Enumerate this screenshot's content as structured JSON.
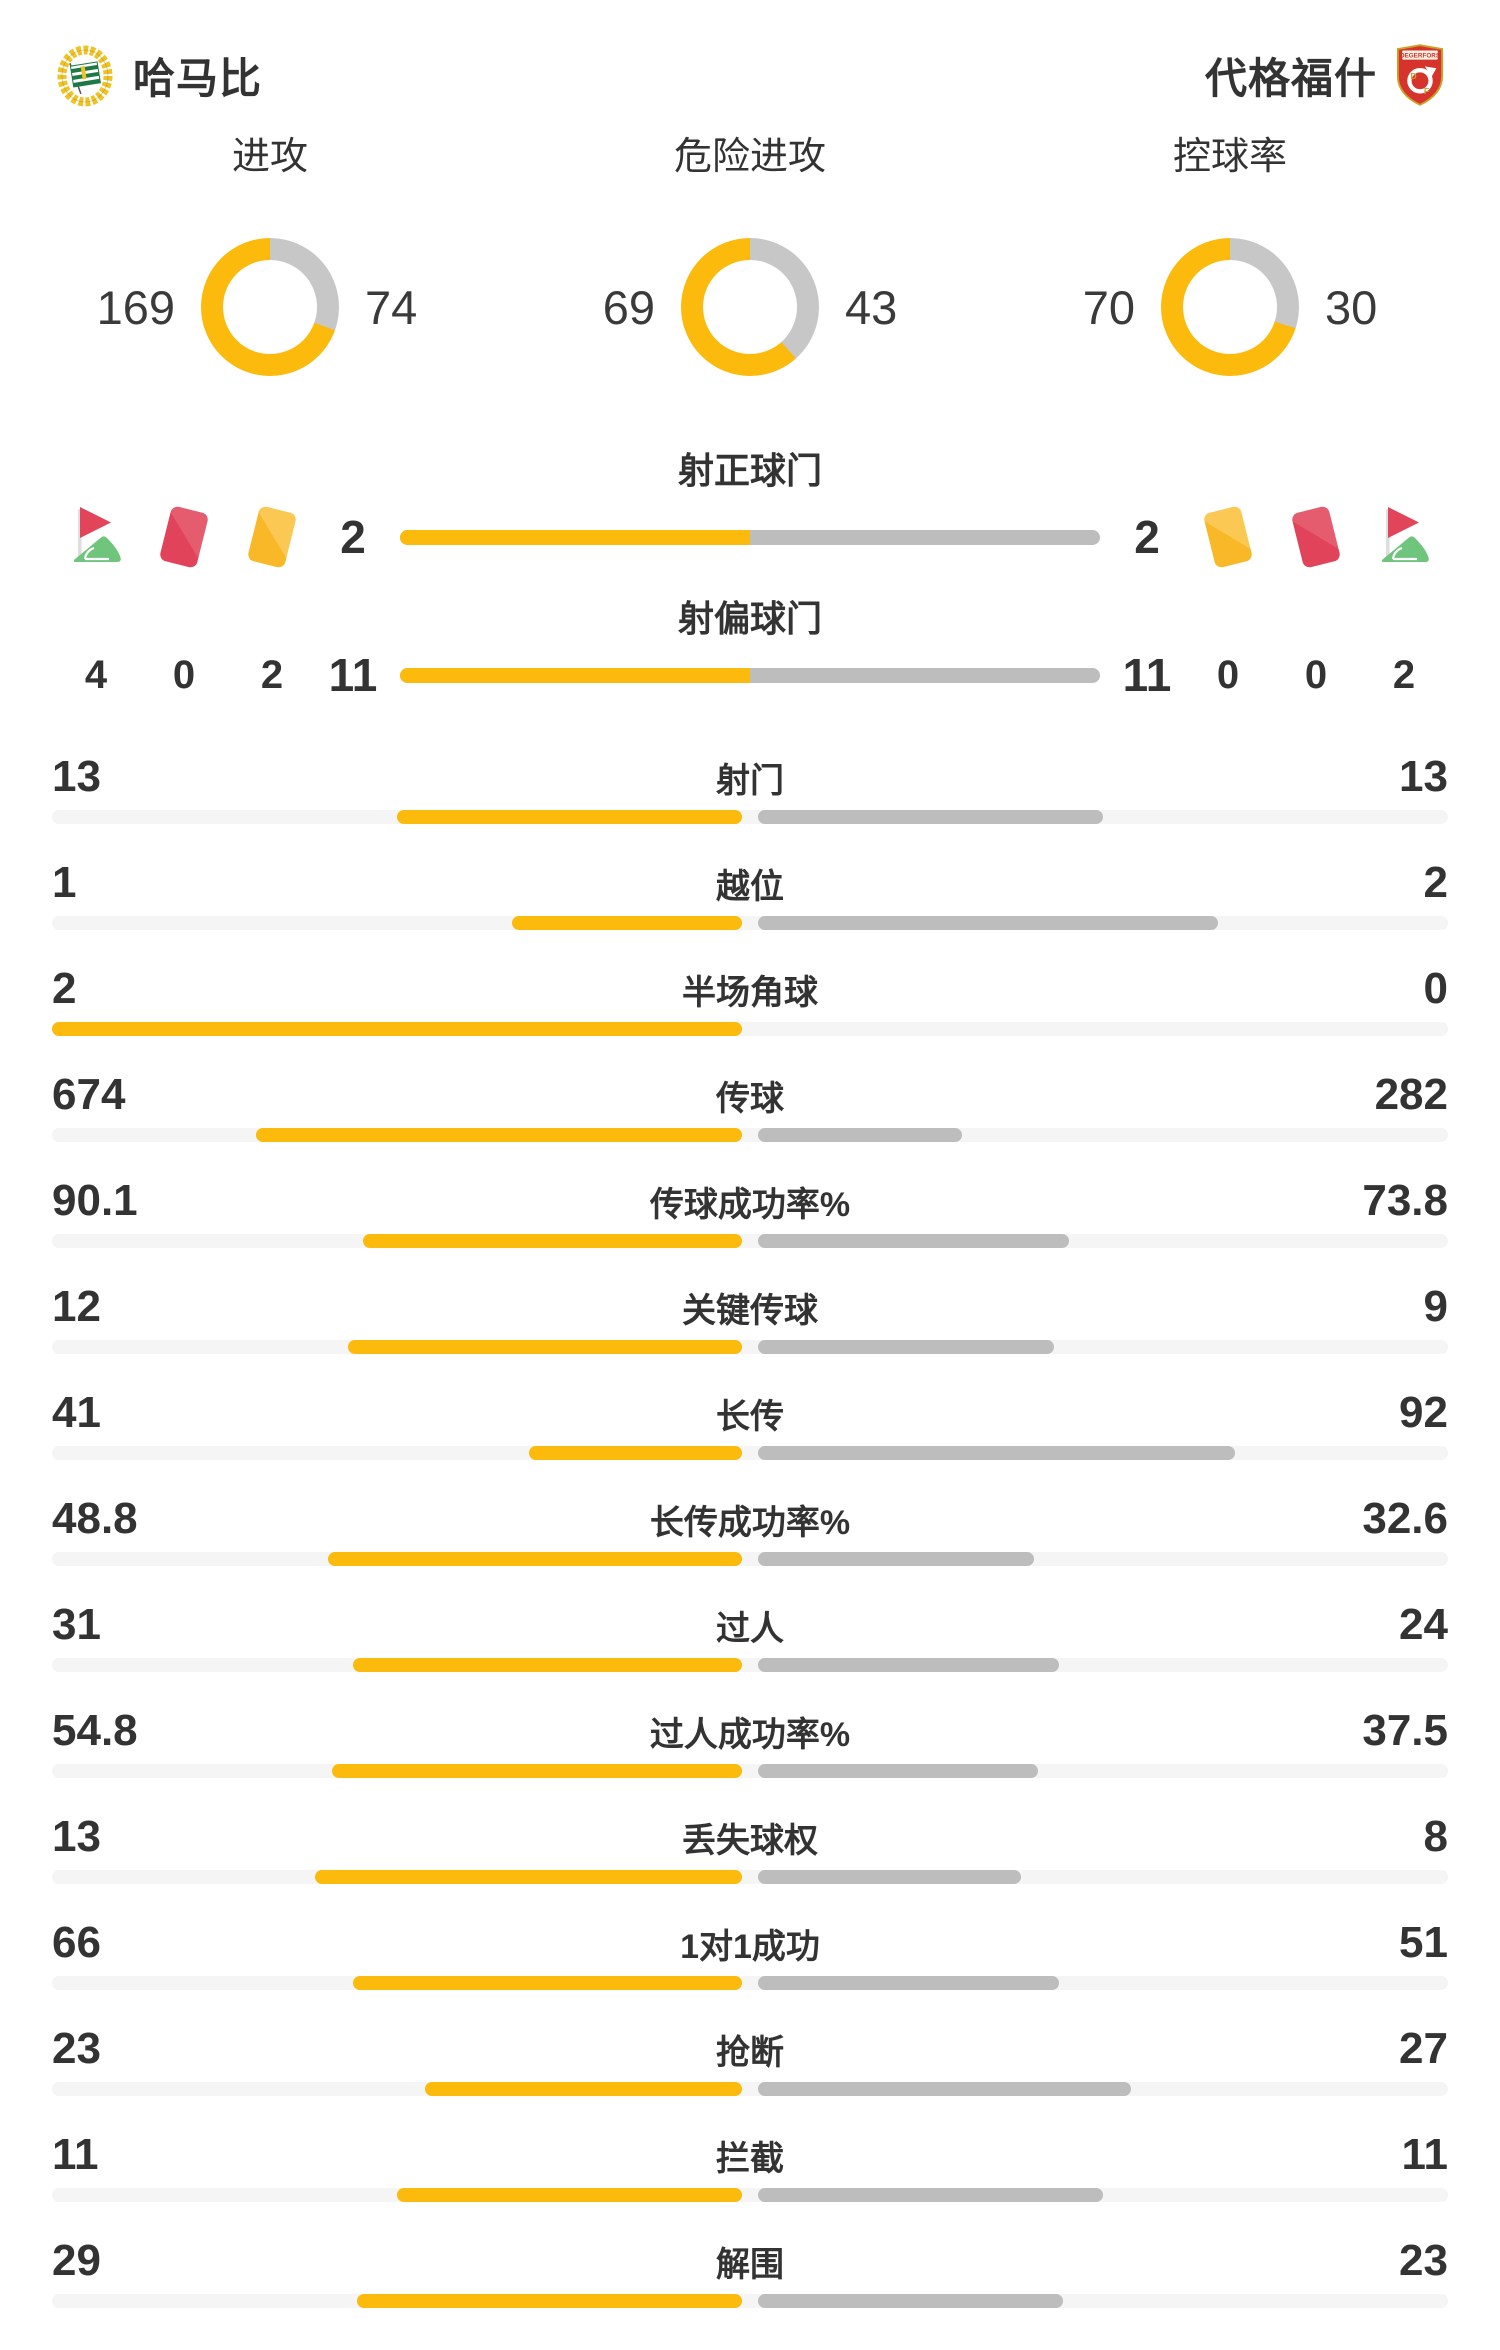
{
  "chart_data": {
    "type": "bar",
    "teams": [
      "哈马比",
      "代格福什"
    ],
    "legend_position": "top",
    "donuts": [
      {
        "label": "进攻",
        "values": [
          169,
          74
        ]
      },
      {
        "label": "危险进攻",
        "values": [
          69,
          43
        ]
      },
      {
        "label": "控球率",
        "values": [
          70,
          30
        ]
      }
    ],
    "shot_bars": [
      {
        "label": "射正球门",
        "values": [
          2,
          2
        ]
      },
      {
        "label": "射偏球门",
        "values": [
          11,
          11
        ]
      }
    ],
    "side_counts": {
      "left": {
        "corners": "4",
        "red_cards": "0",
        "yellow_cards": "2"
      },
      "right": {
        "yellow_cards": "0",
        "red_cards": "0",
        "corners": "2"
      }
    },
    "stats": [
      {
        "label": "射门",
        "values": [
          "13",
          "13"
        ]
      },
      {
        "label": "越位",
        "values": [
          "1",
          "2"
        ]
      },
      {
        "label": "半场角球",
        "values": [
          "2",
          "0"
        ]
      },
      {
        "label": "传球",
        "values": [
          "674",
          "282"
        ]
      },
      {
        "label": "传球成功率%",
        "values": [
          "90.1",
          "73.8"
        ]
      },
      {
        "label": "关键传球",
        "values": [
          "12",
          "9"
        ]
      },
      {
        "label": "长传",
        "values": [
          "41",
          "92"
        ]
      },
      {
        "label": "长传成功率%",
        "values": [
          "48.8",
          "32.6"
        ]
      },
      {
        "label": "过人",
        "values": [
          "31",
          "24"
        ]
      },
      {
        "label": "过人成功率%",
        "values": [
          "54.8",
          "37.5"
        ]
      },
      {
        "label": "丢失球权",
        "values": [
          "13",
          "8"
        ]
      },
      {
        "label": "1对1成功",
        "values": [
          "66",
          "51"
        ]
      },
      {
        "label": "抢断",
        "values": [
          "23",
          "27"
        ]
      },
      {
        "label": "拦截",
        "values": [
          "11",
          "11"
        ]
      },
      {
        "label": "解围",
        "values": [
          "29",
          "23"
        ]
      }
    ]
  },
  "colors": {
    "accent_yellow": "#FBBA0C",
    "bar_gray": "#BDBDBD",
    "track_gray": "#F5F5F5",
    "donut_gray": "#C7C7C7",
    "text": "#333333",
    "card_red": "#E0435A",
    "card_yellow": "#F9B827",
    "flag_green": "#6FC57B"
  }
}
